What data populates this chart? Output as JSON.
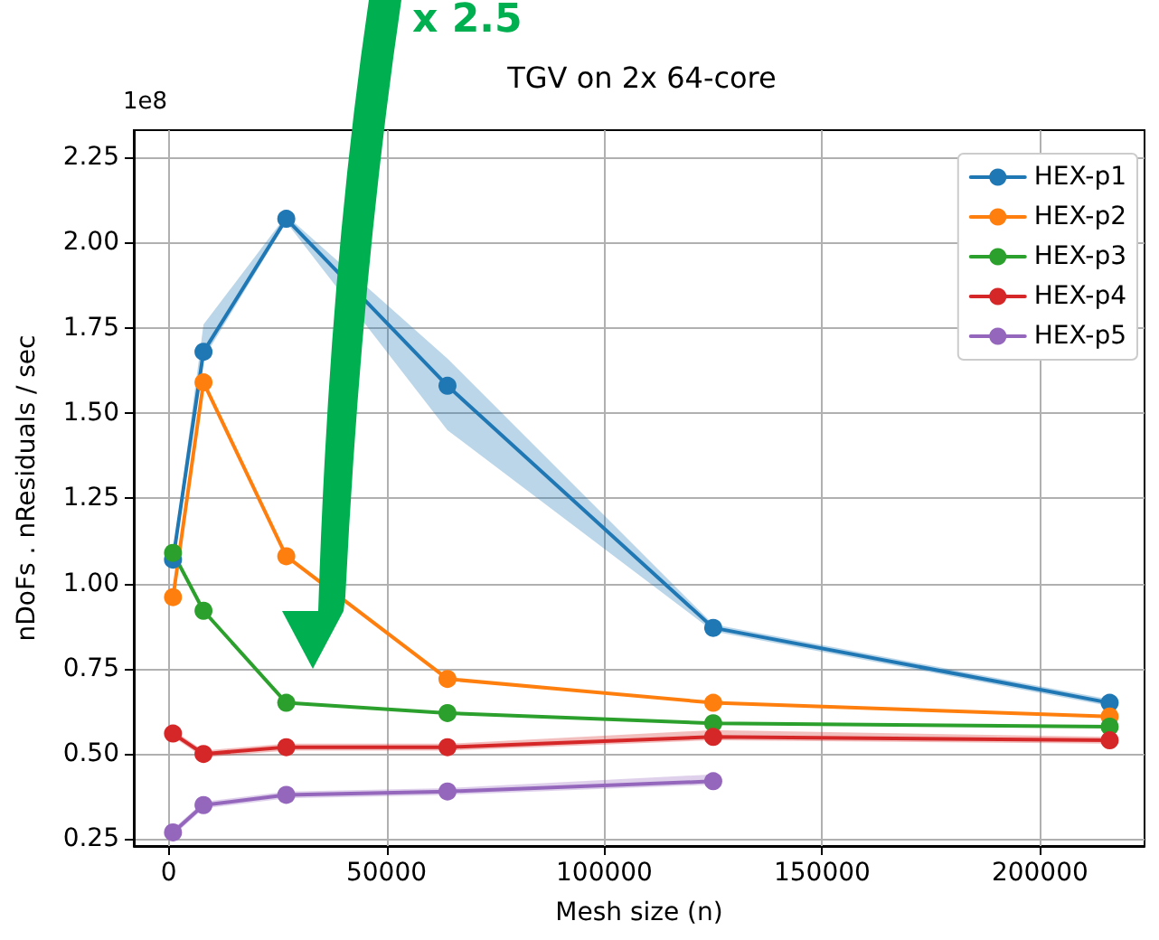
{
  "chart_data": {
    "type": "line",
    "title": "TGV on 2x 64-core",
    "xlabel": "Mesh size (n)",
    "ylabel": "nDoFs . nResiduals / sec",
    "annotations": [
      "1e8",
      "x 2.5"
    ],
    "x": [
      1000,
      8000,
      27000,
      64000,
      125000,
      216000
    ],
    "series": [
      {
        "name": "HEX-p1",
        "color": "#1f77b4",
        "values": [
          1.07,
          1.68,
          2.07,
          1.58,
          0.87,
          0.65
        ],
        "lower": [
          1.06,
          1.66,
          2.06,
          1.45,
          0.86,
          0.64
        ],
        "upper": [
          1.08,
          1.76,
          2.08,
          1.66,
          0.88,
          0.66
        ]
      },
      {
        "name": "HEX-p2",
        "color": "#ff7f0e",
        "values": [
          0.96,
          1.59,
          1.08,
          0.72,
          0.65,
          0.61
        ]
      },
      {
        "name": "HEX-p3",
        "color": "#2ca02c",
        "values": [
          1.09,
          0.92,
          0.65,
          0.62,
          0.59,
          0.58
        ]
      },
      {
        "name": "HEX-p4",
        "color": "#d62728",
        "values": [
          0.56,
          0.5,
          0.52,
          0.52,
          0.55,
          0.54
        ],
        "lower": [
          0.55,
          0.49,
          0.51,
          0.51,
          0.54,
          0.53
        ],
        "upper": [
          0.57,
          0.51,
          0.53,
          0.53,
          0.57,
          0.55
        ]
      },
      {
        "name": "HEX-p5",
        "color": "#9467bd",
        "values": [
          0.27,
          0.35,
          0.38,
          0.39,
          0.42,
          null
        ],
        "lower": [
          0.26,
          0.34,
          0.37,
          0.38,
          0.41,
          null
        ],
        "upper": [
          0.28,
          0.36,
          0.39,
          0.4,
          0.44,
          null
        ]
      }
    ],
    "xlim": [
      -8000,
      224000
    ],
    "xticks": [
      0,
      50000,
      100000,
      150000,
      200000
    ],
    "ylim": [
      0.23,
      2.33
    ],
    "yticks": [
      {
        "value": 0.25,
        "label": "0.25"
      },
      {
        "value": 0.5,
        "label": "0.50"
      },
      {
        "value": 0.75,
        "label": "0.75"
      },
      {
        "value": 1,
        "label": "1.00"
      },
      {
        "value": 1.25,
        "label": "1.25"
      },
      {
        "value": 1.5,
        "label": "1.50"
      },
      {
        "value": 1.75,
        "label": "1.75"
      },
      {
        "value": 2,
        "label": "2.00"
      },
      {
        "value": 2.25,
        "label": "2.25"
      }
    ],
    "grid": true,
    "legend": "top right",
    "marker": "circle",
    "line_style": "solid"
  }
}
